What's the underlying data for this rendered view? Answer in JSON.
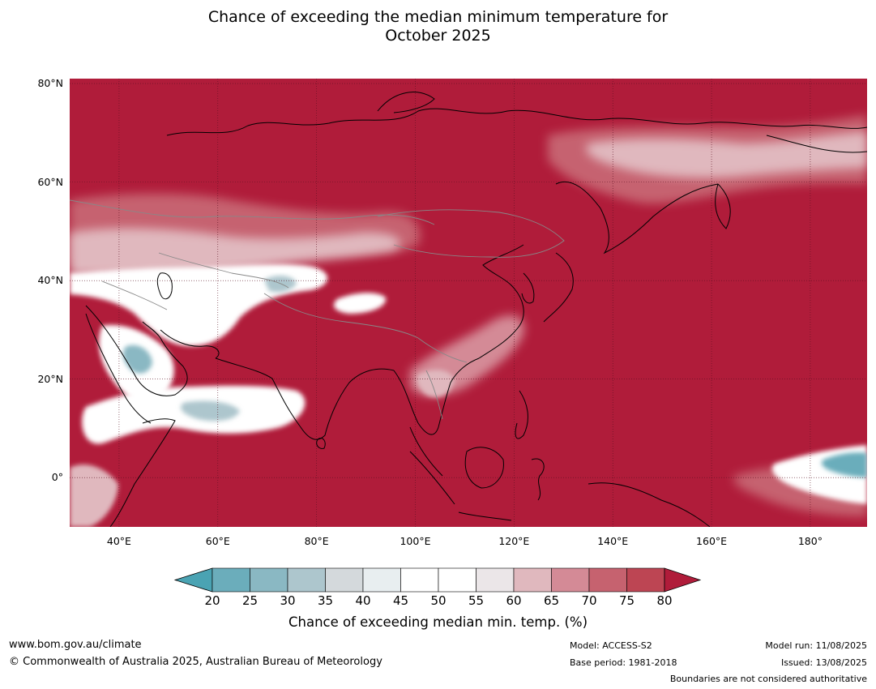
{
  "title_line1": "Chance of exceeding the median minimum temperature for",
  "title_line2": "October 2025",
  "map": {
    "extent": {
      "lon_min": 30,
      "lon_max": 191.5,
      "lat_min": -10,
      "lat_max": 81
    },
    "background_color": "#b01c3a",
    "lat_ticks": [
      {
        "value": 80,
        "label": "80°N"
      },
      {
        "value": 60,
        "label": "60°N"
      },
      {
        "value": 40,
        "label": "40°N"
      },
      {
        "value": 20,
        "label": "20°N"
      },
      {
        "value": 0,
        "label": "0°"
      }
    ],
    "lon_ticks": [
      {
        "value": 40,
        "label": "40°E"
      },
      {
        "value": 60,
        "label": "60°E"
      },
      {
        "value": 80,
        "label": "80°E"
      },
      {
        "value": 100,
        "label": "100°E"
      },
      {
        "value": 120,
        "label": "120°E"
      },
      {
        "value": 140,
        "label": "140°E"
      },
      {
        "value": 160,
        "label": "160°E"
      },
      {
        "value": 180,
        "label": "180°"
      }
    ]
  },
  "colorbar": {
    "ticks": [
      "20",
      "25",
      "30",
      "35",
      "40",
      "45",
      "50",
      "55",
      "60",
      "65",
      "70",
      "75",
      "80"
    ],
    "colors": [
      "#6badbb",
      "#8ab8c3",
      "#adc6cd",
      "#d4d9dc",
      "#e8eef0",
      "#ffffff",
      "#ffffff",
      "#ebe6e8",
      "#e0b8be",
      "#d48a96",
      "#c6626f",
      "#bd4553"
    ],
    "below_color": "#4aa3b3",
    "above_color": "#b01c3a",
    "label": "Chance of exceeding median min. temp. (%)"
  },
  "footer": {
    "url": "www.bom.gov.au/climate",
    "copyright": "© Commonwealth of Australia 2025, Australian Bureau of Meteorology",
    "model": "Model: ACCESS-S2",
    "base_period": "Base period: 1981-2018",
    "model_run": "Model run: 11/08/2025",
    "issued": "Issued: 13/08/2025",
    "disclaimer": "Boundaries are not considered authoritative"
  }
}
